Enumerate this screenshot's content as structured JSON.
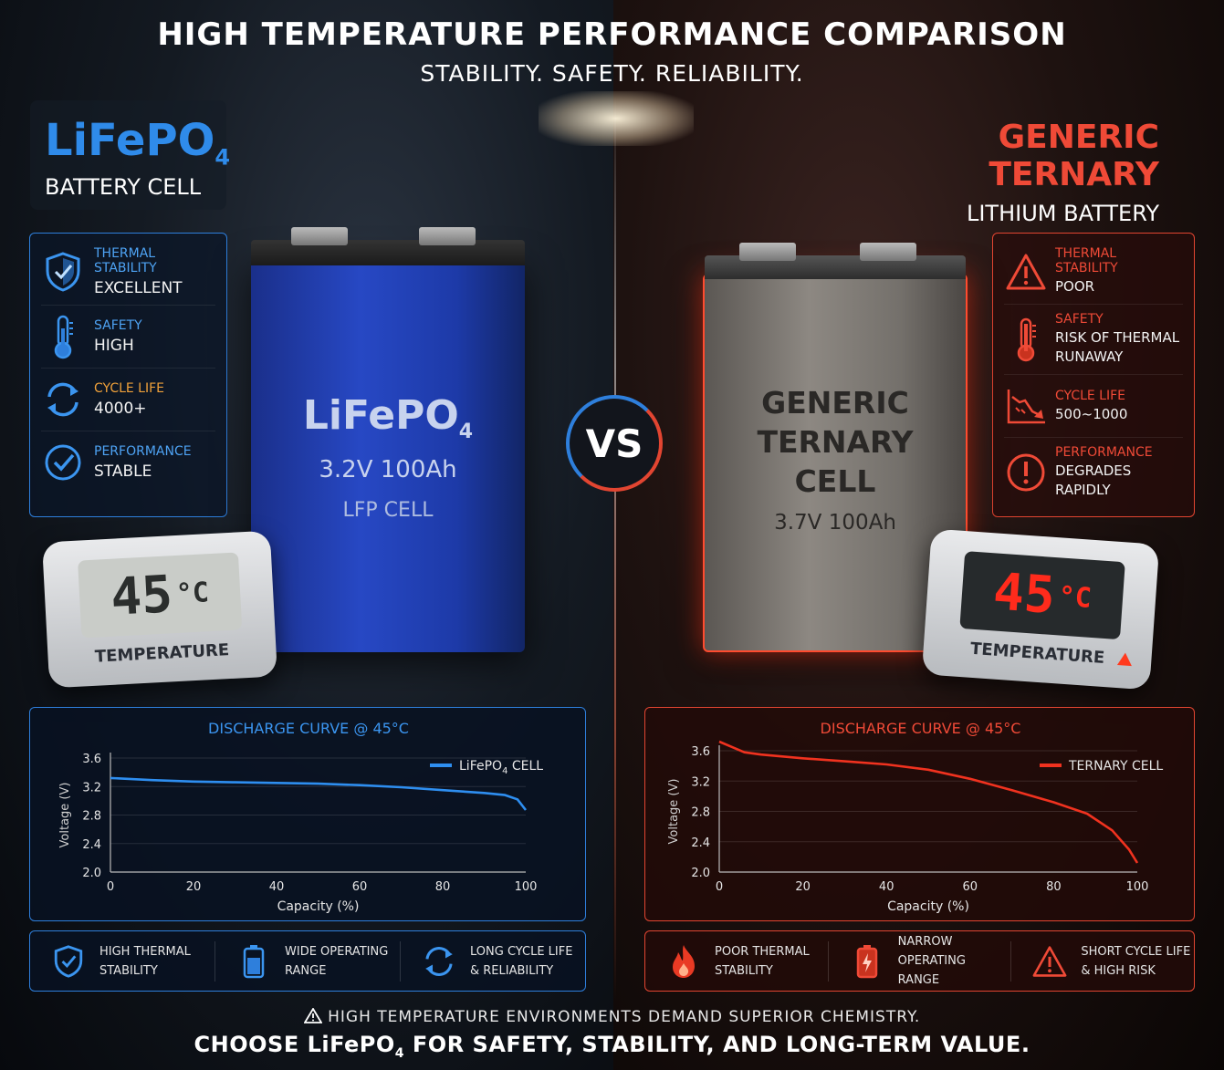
{
  "header": {
    "title": "HIGH TEMPERATURE PERFORMANCE COMPARISON",
    "subtitle": "STABILITY. SAFETY. RELIABILITY."
  },
  "left": {
    "brand_main": "LiFePO",
    "brand_sub": "4",
    "brand_line2": "BATTERY CELL",
    "specs": [
      {
        "icon": "shield-check-icon",
        "label": "THERMAL STABILITY",
        "value": "EXCELLENT"
      },
      {
        "icon": "thermometer-icon",
        "label": "SAFETY",
        "value": "HIGH"
      },
      {
        "icon": "cycle-arrows-icon",
        "label": "CYCLE LIFE",
        "value": "4000+"
      },
      {
        "icon": "check-circle-icon",
        "label": "PERFORMANCE",
        "value": "STABLE"
      }
    ],
    "cell": {
      "line1": "LiFePO",
      "line1_sub": "4",
      "line2": "3.2V 100Ah",
      "line3": "LFP CELL"
    },
    "thermometer": {
      "reading": "45",
      "unit": "°C",
      "label": "TEMPERATURE"
    },
    "features": [
      {
        "icon": "shield-check-icon",
        "line1": "HIGH THERMAL",
        "line2": "STABILITY"
      },
      {
        "icon": "battery-full-icon",
        "line1": "WIDE OPERATING",
        "line2": "RANGE"
      },
      {
        "icon": "cycle-arrows-icon",
        "line1": "LONG CYCLE LIFE",
        "line2": "& RELIABILITY"
      }
    ]
  },
  "right": {
    "brand_line1": "GENERIC TERNARY",
    "brand_line2": "LITHIUM BATTERY",
    "specs": [
      {
        "icon": "warning-triangle-icon",
        "label": "THERMAL STABILITY",
        "value": "POOR"
      },
      {
        "icon": "thermometer-hot-icon",
        "label": "SAFETY",
        "value1": "RISK OF THERMAL",
        "value2": "RUNAWAY"
      },
      {
        "icon": "declining-chart-icon",
        "label": "CYCLE LIFE",
        "value": "500~1000"
      },
      {
        "icon": "exclamation-circle-icon",
        "label": "PERFORMANCE",
        "value": "DEGRADES RAPIDLY"
      }
    ],
    "cell": {
      "line1": "GENERIC",
      "line2": "TERNARY",
      "line3": "CELL",
      "line4": "3.7V 100Ah"
    },
    "thermometer": {
      "reading": "45",
      "unit": "°C",
      "label": "TEMPERATURE"
    },
    "features": [
      {
        "icon": "flame-icon",
        "line1": "POOR THERMAL",
        "line2": "STABILITY"
      },
      {
        "icon": "battery-warning-icon",
        "line1": "NARROW OPERATING",
        "line2": "RANGE"
      },
      {
        "icon": "warning-triangle-icon",
        "line1": "SHORT CYCLE LIFE",
        "line2": "& HIGH RISK"
      }
    ]
  },
  "vs_label": "VS",
  "chart_data": [
    {
      "type": "line",
      "title": "DISCHARGE CURVE @ 45°C",
      "xlabel": "Capacity (%)",
      "ylabel": "Voltage (V)",
      "xlim": [
        0,
        100
      ],
      "ylim": [
        2.0,
        3.6
      ],
      "xticks": [
        0,
        20,
        40,
        60,
        80,
        100
      ],
      "yticks": [
        2.0,
        2.4,
        2.8,
        3.2,
        3.6
      ],
      "legend_position": "top-right",
      "color": "#2e8ef0",
      "series": [
        {
          "name": "LiFePO",
          "name_sub": "4",
          "name_suffix": " CELL",
          "x": [
            0,
            10,
            20,
            30,
            40,
            50,
            60,
            70,
            80,
            90,
            95,
            98,
            100
          ],
          "y": [
            3.32,
            3.29,
            3.27,
            3.26,
            3.25,
            3.24,
            3.22,
            3.19,
            3.15,
            3.11,
            3.08,
            3.02,
            2.87
          ]
        }
      ]
    },
    {
      "type": "line",
      "title": "DISCHARGE CURVE @ 45°C",
      "xlabel": "Capacity (%)",
      "ylabel": "Voltage (V)",
      "xlim": [
        0,
        100
      ],
      "ylim": [
        2.0,
        3.6
      ],
      "xticks": [
        0,
        20,
        40,
        60,
        80,
        100
      ],
      "yticks": [
        2.0,
        2.4,
        2.8,
        3.2,
        3.6
      ],
      "legend_position": "top-right",
      "color": "#f0321f",
      "series": [
        {
          "name": "TERNARY CELL",
          "x": [
            0,
            3,
            6,
            10,
            20,
            30,
            40,
            50,
            60,
            70,
            80,
            88,
            94,
            98,
            100
          ],
          "y": [
            3.72,
            3.65,
            3.58,
            3.55,
            3.5,
            3.46,
            3.42,
            3.35,
            3.23,
            3.08,
            2.92,
            2.77,
            2.55,
            2.3,
            2.12
          ]
        }
      ]
    }
  ],
  "footer": {
    "line1": "HIGH TEMPERATURE ENVIRONMENTS DEMAND SUPERIOR CHEMISTRY.",
    "line2_pre": "CHOOSE LiFePO",
    "line2_sub": "4",
    "line2_post": " FOR SAFETY, STABILITY, AND LONG-TERM VALUE."
  },
  "colors": {
    "blue": "#2e7fdc",
    "red": "#e24531",
    "orange": "#f0a13a"
  }
}
